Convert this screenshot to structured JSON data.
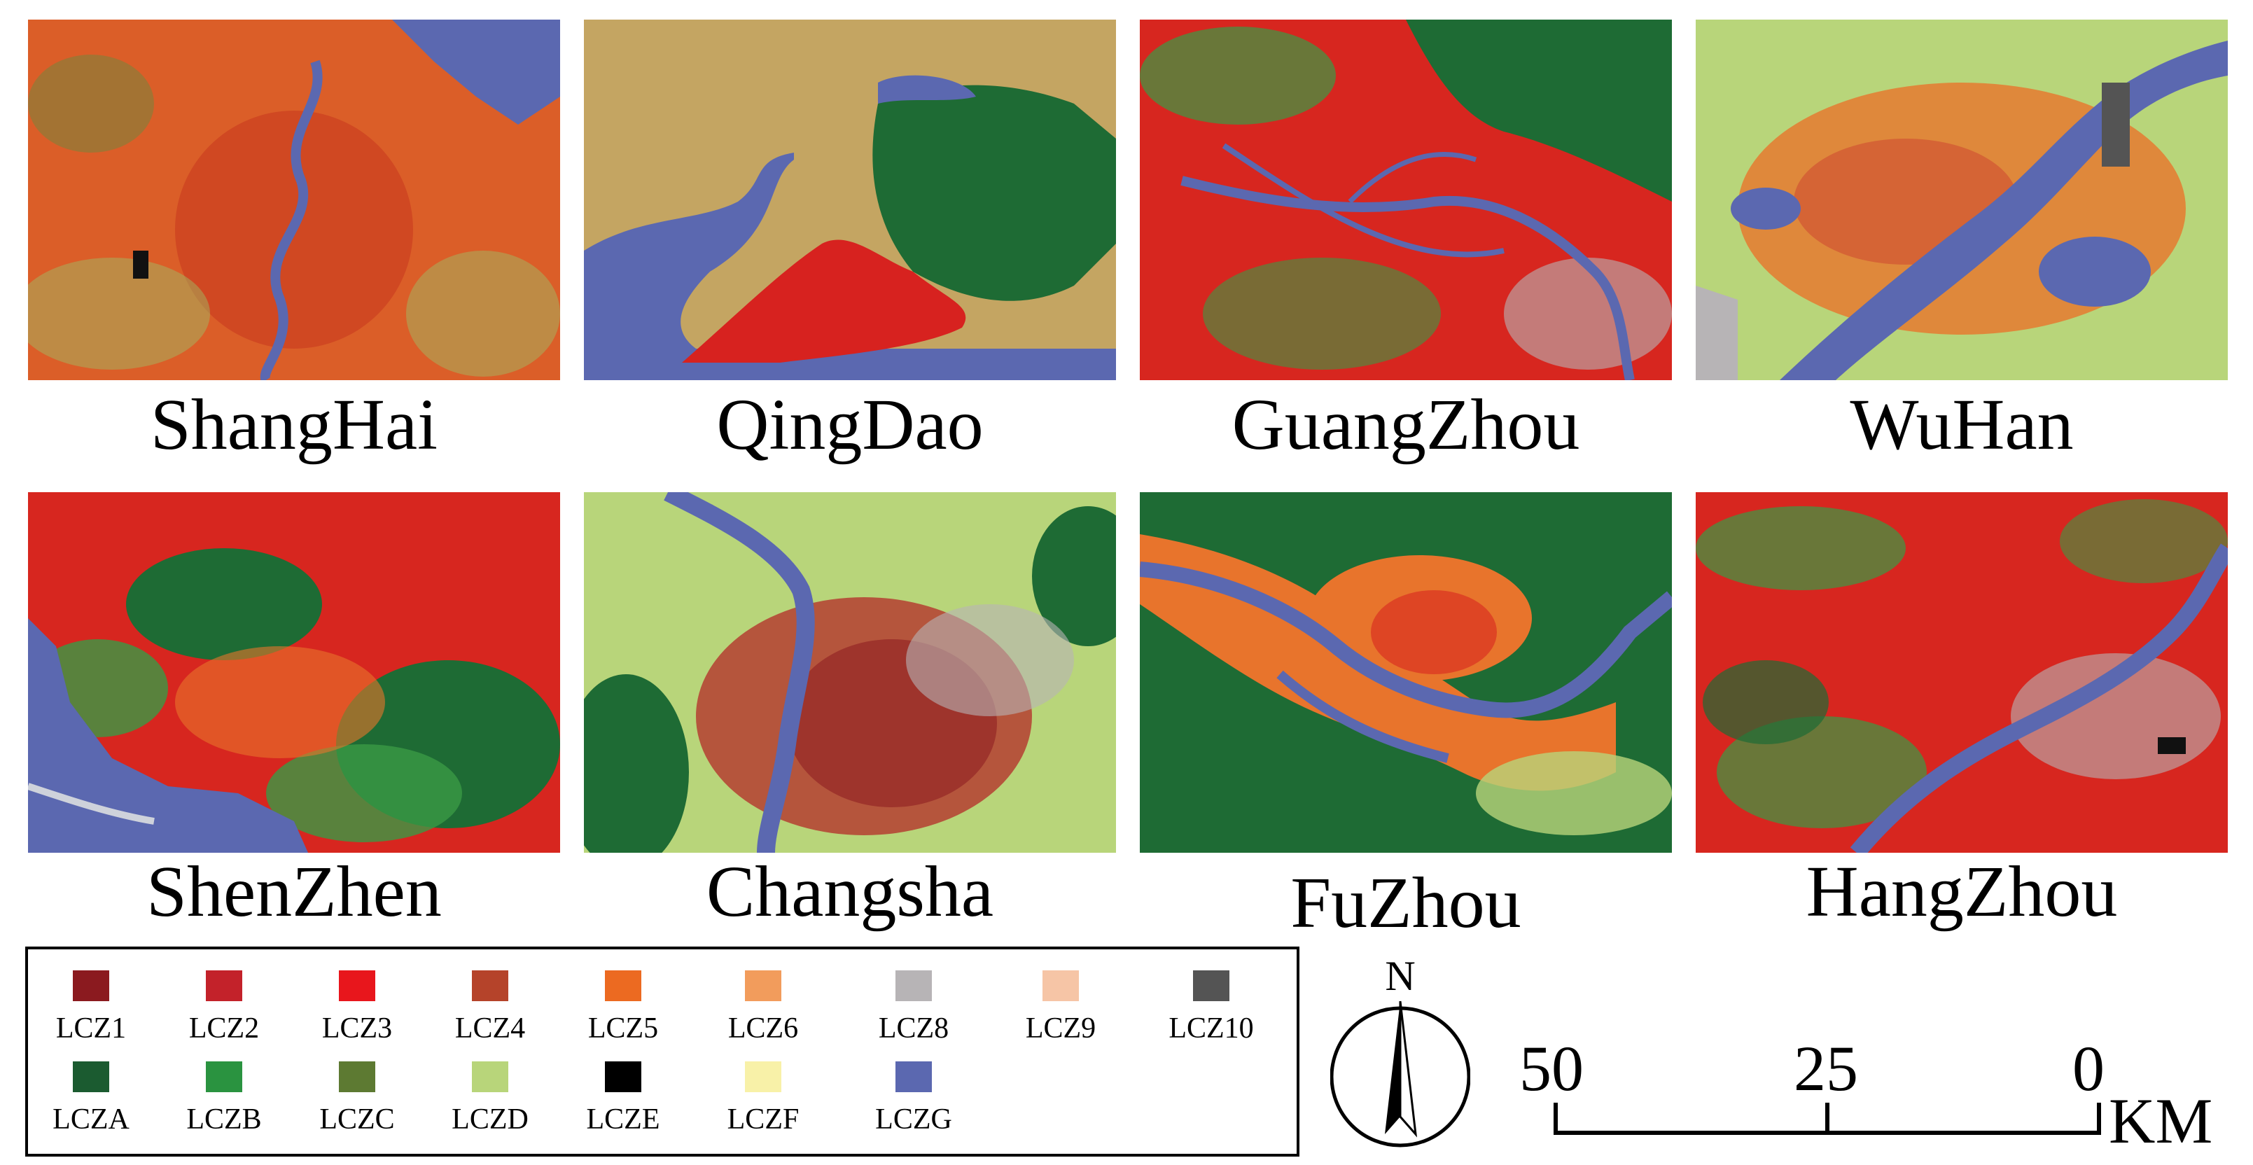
{
  "cities": [
    {
      "name": "ShangHai"
    },
    {
      "name": "QingDao"
    },
    {
      "name": "GuangZhou"
    },
    {
      "name": "WuHan"
    },
    {
      "name": "ShenZhen"
    },
    {
      "name": "Changsha"
    },
    {
      "name": "FuZhou"
    },
    {
      "name": "HangZhou"
    }
  ],
  "legend": {
    "items": [
      {
        "label": "LCZ1",
        "color": "#8b1a1f"
      },
      {
        "label": "LCZ2",
        "color": "#c3222a"
      },
      {
        "label": "LCZ3",
        "color": "#e8161c"
      },
      {
        "label": "LCZ4",
        "color": "#b5432a"
      },
      {
        "label": "LCZ5",
        "color": "#ec6a21"
      },
      {
        "label": "LCZ6",
        "color": "#f29c5c"
      },
      {
        "label": "LCZ8",
        "color": "#b7b4b6"
      },
      {
        "label": "LCZ9",
        "color": "#f6c5a6"
      },
      {
        "label": "LCZ10",
        "color": "#545454"
      },
      {
        "label": "LCZA",
        "color": "#1b5b30"
      },
      {
        "label": "LCZB",
        "color": "#2a9340"
      },
      {
        "label": "LCZC",
        "color": "#5d7a32"
      },
      {
        "label": "LCZD",
        "color": "#b8d57a"
      },
      {
        "label": "LCZE",
        "color": "#000000"
      },
      {
        "label": "LCZF",
        "color": "#f8f1a8"
      },
      {
        "label": "LCZG",
        "color": "#5b68b0"
      }
    ]
  },
  "north_arrow": {
    "label": "N"
  },
  "scale_bar": {
    "ticks": [
      "50",
      "25",
      "0"
    ],
    "unit": "KM"
  }
}
